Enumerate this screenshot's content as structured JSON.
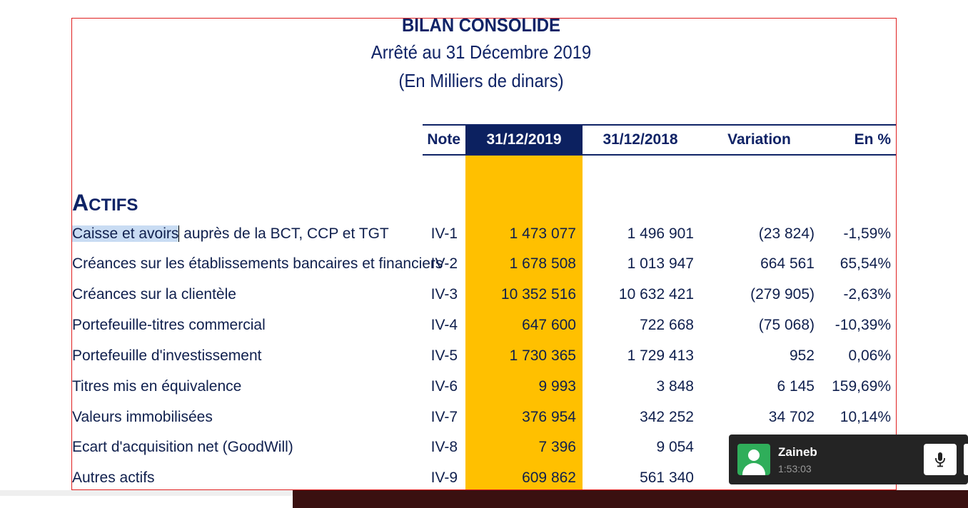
{
  "header": {
    "title": "BILAN CONSOLIDE",
    "subtitle": "Arrêté au 31 Décembre 2019",
    "unit": "(En Milliers de dinars)"
  },
  "columns": {
    "note": "Note",
    "y2019": "31/12/2019",
    "y2018": "31/12/2018",
    "variation": "Variation",
    "pct": "En %"
  },
  "section": {
    "first": "A",
    "rest": "CTIFS"
  },
  "rows": [
    {
      "label_sel": "Caisse et avoirs",
      "label": " auprès de la BCT, CCP et TGT",
      "note": "IV-1",
      "y2019": "1 473 077",
      "y2018": "1 496 901",
      "variation": "(23 824)",
      "pct": "-1,59%"
    },
    {
      "label": "Créances sur les établissements bancaires et financiers",
      "note": "IV-2",
      "y2019": "1 678 508",
      "y2018": "1 013 947",
      "variation": "664 561",
      "pct": "65,54%"
    },
    {
      "label": "Créances sur la clientèle",
      "note": "IV-3",
      "y2019": "10 352 516",
      "y2018": "10 632 421",
      "variation": "(279 905)",
      "pct": "-2,63%"
    },
    {
      "label": "Portefeuille-titres commercial",
      "note": "IV-4",
      "y2019": "647 600",
      "y2018": "722 668",
      "variation": "(75 068)",
      "pct": "-10,39%"
    },
    {
      "label": "Portefeuille d'investissement",
      "note": "IV-5",
      "y2019": "1 730 365",
      "y2018": "1 729 413",
      "variation": "952",
      "pct": "0,06%"
    },
    {
      "label": "Titres mis en équivalence",
      "note": "IV-6",
      "y2019": "9 993",
      "y2018": "3 848",
      "variation": "6 145",
      "pct": "159,69%"
    },
    {
      "label": "Valeurs immobilisées",
      "note": "IV-7",
      "y2019": "376 954",
      "y2018": "342 252",
      "variation": "34 702",
      "pct": "10,14%"
    },
    {
      "label": "Ecart d'acquisition net (GoodWill)",
      "note": "IV-8",
      "y2019": "7 396",
      "y2018": "9 054",
      "variation": "",
      "pct": ""
    },
    {
      "label": "Autres actifs",
      "note": "IV-9",
      "y2019": "609 862",
      "y2018": "561 340",
      "variation": "",
      "pct": ""
    }
  ],
  "call": {
    "name": "Zaineb",
    "duration": "1:53:03",
    "mic_icon": "microphone-icon",
    "avatar_icon": "user-avatar-icon"
  },
  "colors": {
    "navy": "#0c2160",
    "highlight": "#ffc000",
    "frame": "#e02020",
    "call_bg": "#242424",
    "avatar_bg": "#2fae5a"
  }
}
